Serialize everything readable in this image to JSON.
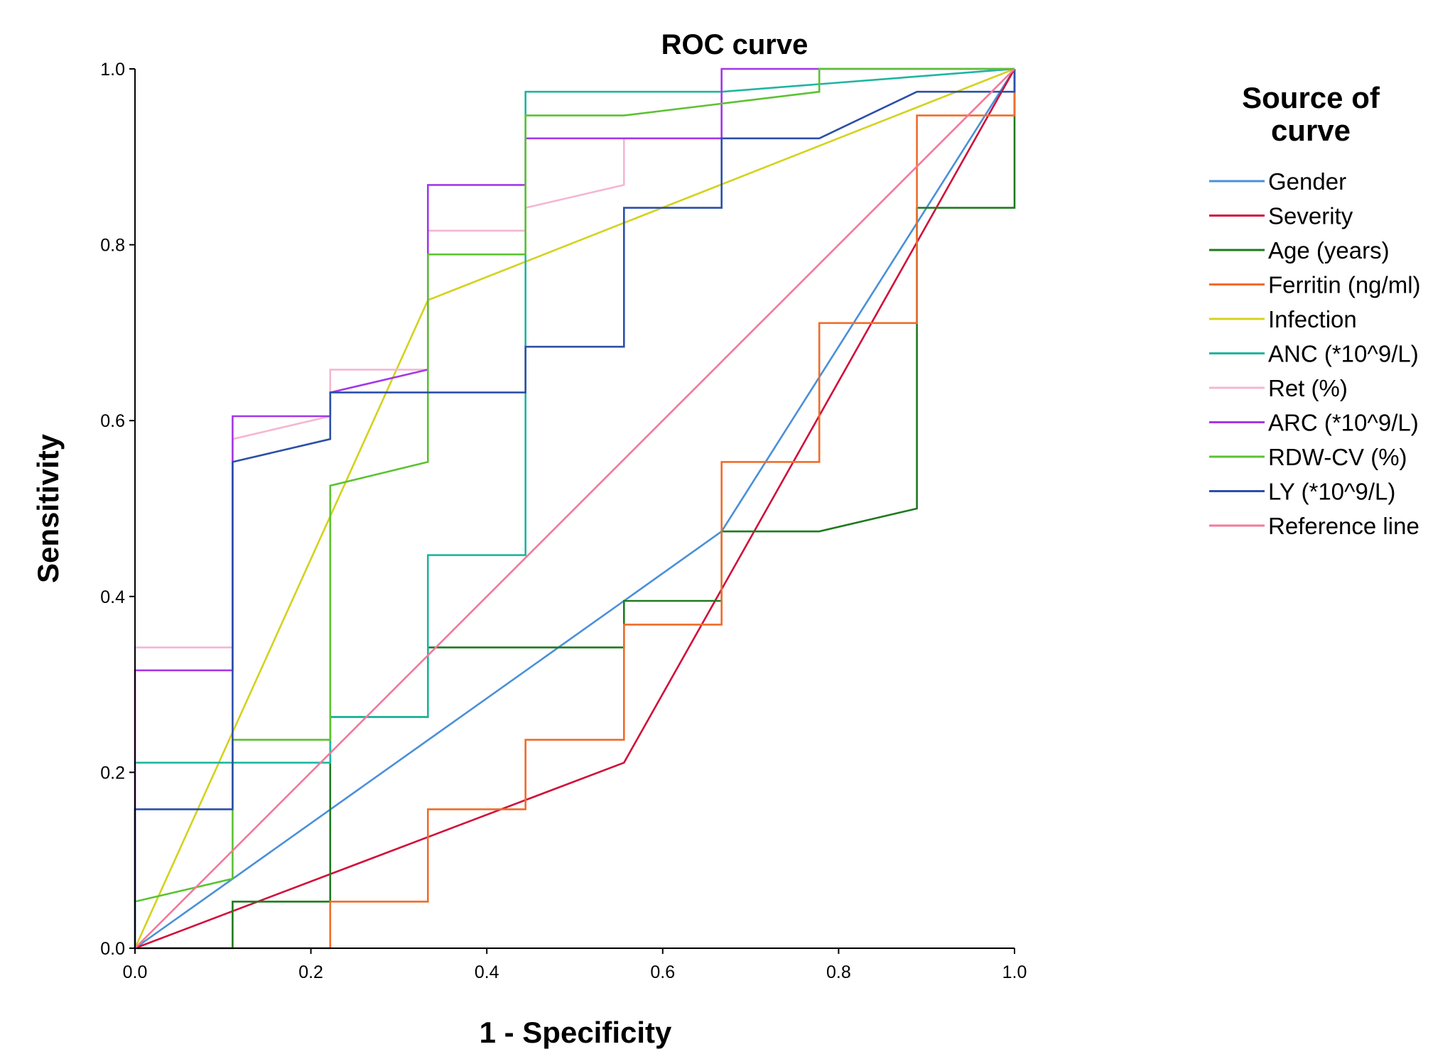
{
  "chart_data": {
    "type": "line",
    "title": "ROC curve",
    "xlabel": "1 - Specificity",
    "ylabel": "Sensitivity",
    "xlim": [
      0,
      1
    ],
    "ylim": [
      0,
      1
    ],
    "xticks": [
      "0.0",
      "0.2",
      "0.4",
      "0.6",
      "0.8",
      "1.0"
    ],
    "yticks": [
      "0.0",
      "0.2",
      "0.4",
      "0.6",
      "0.8",
      "1.0"
    ],
    "legend_title": "Source of curve",
    "legend_position": "right",
    "series": [
      {
        "name": "Gender",
        "color": "#4a90d9",
        "points": [
          [
            0,
            0
          ],
          [
            0.556,
            0.395
          ],
          [
            0.667,
            0.474
          ],
          [
            1,
            1
          ]
        ]
      },
      {
        "name": "Severity",
        "color": "#d0103a",
        "points": [
          [
            0,
            0
          ],
          [
            0.556,
            0.211
          ],
          [
            1,
            1
          ]
        ]
      },
      {
        "name": "Age (years)",
        "color": "#1e7a1e",
        "points": [
          [
            0,
            0
          ],
          [
            0.111,
            0
          ],
          [
            0.111,
            0.053
          ],
          [
            0.222,
            0.053
          ],
          [
            0.222,
            0.211
          ],
          [
            0.222,
            0.263
          ],
          [
            0.333,
            0.263
          ],
          [
            0.333,
            0.342
          ],
          [
            0.556,
            0.342
          ],
          [
            0.556,
            0.395
          ],
          [
            0.667,
            0.395
          ],
          [
            0.667,
            0.474
          ],
          [
            0.778,
            0.474
          ],
          [
            0.889,
            0.5
          ],
          [
            0.889,
            0.842
          ],
          [
            1,
            0.842
          ],
          [
            1,
            1
          ]
        ]
      },
      {
        "name": "Ferritin (ng/ml)",
        "color": "#ef6c2a",
        "points": [
          [
            0,
            0
          ],
          [
            0.222,
            0
          ],
          [
            0.222,
            0.053
          ],
          [
            0.333,
            0.053
          ],
          [
            0.333,
            0.158
          ],
          [
            0.444,
            0.158
          ],
          [
            0.444,
            0.237
          ],
          [
            0.556,
            0.237
          ],
          [
            0.556,
            0.368
          ],
          [
            0.667,
            0.368
          ],
          [
            0.667,
            0.553
          ],
          [
            0.778,
            0.553
          ],
          [
            0.778,
            0.711
          ],
          [
            0.889,
            0.711
          ],
          [
            0.889,
            0.947
          ],
          [
            1,
            0.947
          ],
          [
            1,
            1
          ]
        ]
      },
      {
        "name": "Infection",
        "color": "#d4d21c",
        "points": [
          [
            0,
            0
          ],
          [
            0.333,
            0.737
          ],
          [
            1,
            1
          ]
        ]
      },
      {
        "name": "ANC (*10^9/L)",
        "color": "#1fb5a0",
        "points": [
          [
            0,
            0
          ],
          [
            0,
            0.211
          ],
          [
            0.222,
            0.211
          ],
          [
            0.222,
            0.263
          ],
          [
            0.333,
            0.263
          ],
          [
            0.333,
            0.447
          ],
          [
            0.444,
            0.447
          ],
          [
            0.444,
            0.974
          ],
          [
            0.667,
            0.974
          ],
          [
            1,
            1
          ]
        ]
      },
      {
        "name": "Ret (%)",
        "color": "#f4b6d2",
        "points": [
          [
            0,
            0
          ],
          [
            0,
            0.342
          ],
          [
            0.111,
            0.342
          ],
          [
            0.111,
            0.579
          ],
          [
            0.222,
            0.605
          ],
          [
            0.222,
            0.658
          ],
          [
            0.333,
            0.658
          ],
          [
            0.333,
            0.816
          ],
          [
            0.444,
            0.816
          ],
          [
            0.444,
            0.842
          ],
          [
            0.556,
            0.868
          ],
          [
            0.556,
            0.921
          ],
          [
            0.667,
            0.921
          ],
          [
            0.667,
            1
          ],
          [
            1,
            1
          ]
        ]
      },
      {
        "name": "ARC (*10^9/L)",
        "color": "#a338e8",
        "points": [
          [
            0,
            0
          ],
          [
            0,
            0.316
          ],
          [
            0.111,
            0.316
          ],
          [
            0.111,
            0.605
          ],
          [
            0.222,
            0.605
          ],
          [
            0.222,
            0.632
          ],
          [
            0.333,
            0.658
          ],
          [
            0.333,
            0.868
          ],
          [
            0.444,
            0.868
          ],
          [
            0.444,
            0.921
          ],
          [
            0.667,
            0.921
          ],
          [
            0.667,
            1
          ],
          [
            1,
            1
          ]
        ]
      },
      {
        "name": "RDW-CV (%)",
        "color": "#5bc232",
        "points": [
          [
            0,
            0
          ],
          [
            0,
            0.053
          ],
          [
            0.111,
            0.079
          ],
          [
            0.111,
            0.237
          ],
          [
            0.222,
            0.237
          ],
          [
            0.222,
            0.526
          ],
          [
            0.333,
            0.553
          ],
          [
            0.333,
            0.789
          ],
          [
            0.444,
            0.789
          ],
          [
            0.444,
            0.947
          ],
          [
            0.556,
            0.947
          ],
          [
            0.778,
            0.974
          ],
          [
            0.778,
            1
          ],
          [
            1,
            1
          ]
        ]
      },
      {
        "name": "LY (*10^9/L)",
        "color": "#2c4fa8",
        "points": [
          [
            0,
            0
          ],
          [
            0,
            0.158
          ],
          [
            0.111,
            0.158
          ],
          [
            0.111,
            0.553
          ],
          [
            0.222,
            0.579
          ],
          [
            0.222,
            0.632
          ],
          [
            0.444,
            0.632
          ],
          [
            0.444,
            0.684
          ],
          [
            0.556,
            0.684
          ],
          [
            0.556,
            0.842
          ],
          [
            0.667,
            0.842
          ],
          [
            0.667,
            0.921
          ],
          [
            0.778,
            0.921
          ],
          [
            0.889,
            0.974
          ],
          [
            1,
            0.974
          ],
          [
            1,
            1
          ]
        ]
      },
      {
        "name": "Reference line",
        "color": "#f7779a",
        "points": [
          [
            0,
            0
          ],
          [
            1,
            1
          ]
        ]
      }
    ]
  }
}
